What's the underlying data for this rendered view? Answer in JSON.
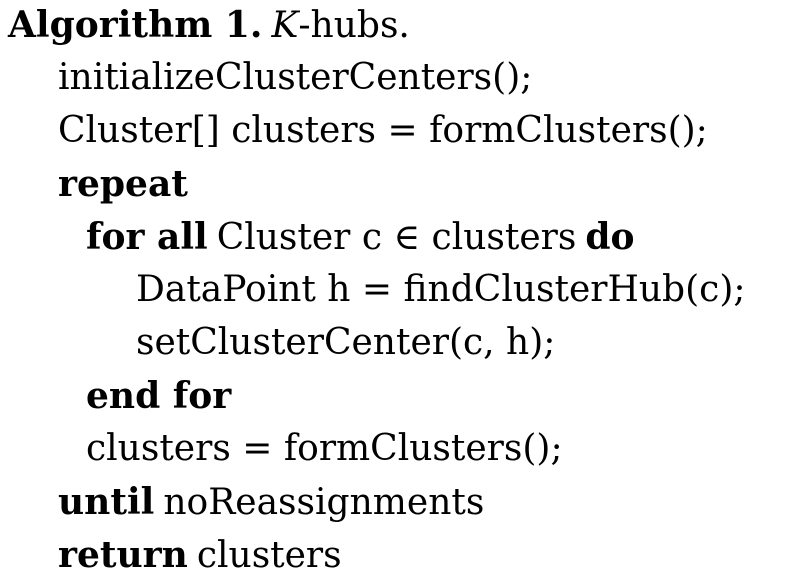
{
  "title": {
    "label": "Algorithm 1.",
    "name_italic": "K",
    "name_rest": "-hubs."
  },
  "lines": {
    "l1": "initializeClusterCenters();",
    "l2": "Cluster[] clusters =  formClusters();",
    "l3_kw": "repeat",
    "l4_kw1": "for all",
    "l4_text": "Cluster c ∈  clusters",
    "l4_kw2": "do",
    "l5": "DataPoint h =  findClusterHub(c);",
    "l6": "setClusterCenter(c, h);",
    "l7_kw": "end for",
    "l8": "clusters =  formClusters();",
    "l9_kw": "until",
    "l9_text": "noReassignments",
    "l10_kw": "return",
    "l10_text": "clusters"
  }
}
